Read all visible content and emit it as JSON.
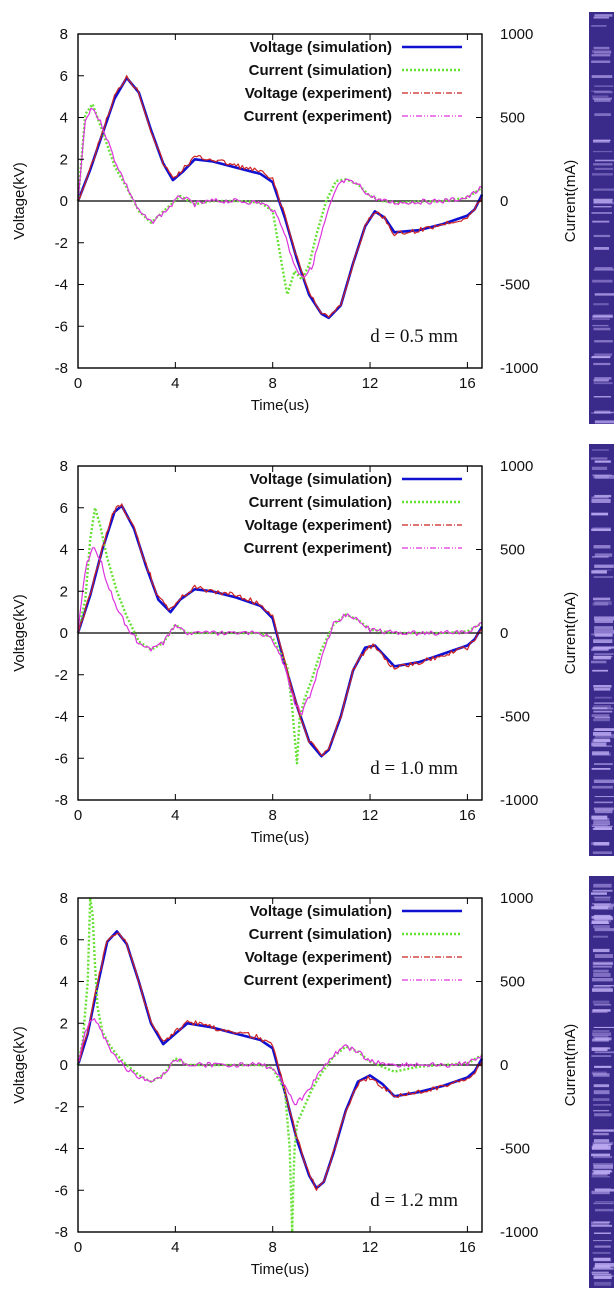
{
  "colors": {
    "voltage_simulation": "#1010d0",
    "current_simulation": "#66e033",
    "voltage_experiment": "#cc2222",
    "current_experiment": "#dd33dd",
    "zero_line": "#000000",
    "strip_base": "#3a2a8a",
    "strip_highlight": "#b9a8f0"
  },
  "strip_image": {
    "description_icon": "discharge-photograph-strip"
  },
  "chart_data": [
    {
      "type": "line",
      "annotation": "d = 0.5 mm",
      "xlabel": "Time(us)",
      "ylabel": "Voltage(kV)",
      "y2label": "Current(mA)",
      "xlim": [
        0,
        16.6
      ],
      "ylim": [
        -8,
        8
      ],
      "y2lim": [
        -1000,
        1000
      ],
      "xticks": [
        "0",
        "4",
        "8",
        "12",
        "16"
      ],
      "yticks": [
        "8",
        "6",
        "4",
        "2",
        "0",
        "-2",
        "-4",
        "-6",
        "-8"
      ],
      "y2ticks": [
        "1000",
        "500",
        "0",
        "-500",
        "-1000"
      ],
      "legend_position": "top-right",
      "legend": [
        "Voltage (simulation)",
        "Current (simulation)",
        "Voltage (experiment)",
        "Current (experiment)"
      ],
      "series": [
        {
          "name": "Voltage (simulation)",
          "axis": "left",
          "x": [
            0,
            0.5,
            1.0,
            1.5,
            2.0,
            2.5,
            3.0,
            3.5,
            3.9,
            4.3,
            4.8,
            5.5,
            6.5,
            7.5,
            8.0,
            8.5,
            9.0,
            9.5,
            10.0,
            10.3,
            10.8,
            11.3,
            11.8,
            12.2,
            12.6,
            13.0,
            14.0,
            15.0,
            16.0,
            16.3,
            16.6
          ],
          "y": [
            0,
            1.5,
            3.2,
            4.9,
            5.9,
            5.2,
            3.4,
            1.8,
            1.0,
            1.4,
            2.0,
            1.9,
            1.6,
            1.3,
            0.9,
            -0.8,
            -2.8,
            -4.5,
            -5.4,
            -5.6,
            -5.0,
            -3.0,
            -1.2,
            -0.5,
            -0.8,
            -1.5,
            -1.4,
            -1.1,
            -0.7,
            -0.4,
            0.3
          ]
        },
        {
          "name": "Current (simulation)",
          "axis": "right",
          "x": [
            0,
            0.3,
            0.6,
            1.0,
            1.5,
            2.0,
            2.5,
            3.0,
            3.6,
            4.2,
            4.8,
            5.5,
            6.5,
            7.5,
            8.0,
            8.4,
            8.6,
            8.9,
            9.2,
            9.5,
            9.8,
            10.2,
            10.6,
            11.0,
            11.5,
            12.0,
            12.5,
            13.0,
            14.0,
            15.0,
            16.0,
            16.6
          ],
          "y": [
            0,
            520,
            580,
            420,
            210,
            80,
            -60,
            -130,
            -50,
            30,
            -20,
            0,
            0,
            -10,
            -60,
            -400,
            -560,
            -420,
            -470,
            -380,
            -200,
            0,
            120,
            130,
            100,
            30,
            0,
            -10,
            -5,
            0,
            20,
            80
          ]
        },
        {
          "name": "Voltage (experiment)",
          "axis": "left",
          "x": [
            0,
            0.5,
            1.0,
            1.5,
            2.0,
            2.5,
            3.0,
            3.5,
            3.9,
            4.3,
            4.8,
            5.5,
            6.5,
            7.5,
            8.0,
            8.5,
            9.0,
            9.5,
            10.0,
            10.3,
            10.8,
            11.3,
            11.8,
            12.2,
            12.6,
            13.0,
            14.0,
            15.0,
            16.0,
            16.3,
            16.6
          ],
          "y": [
            0,
            1.5,
            3.3,
            5.0,
            6.0,
            5.2,
            3.4,
            1.8,
            1.1,
            1.5,
            2.1,
            2.0,
            1.7,
            1.4,
            1.0,
            -0.7,
            -2.7,
            -4.4,
            -5.3,
            -5.6,
            -5.0,
            -3.0,
            -1.2,
            -0.5,
            -0.8,
            -1.6,
            -1.4,
            -1.1,
            -0.8,
            -0.4,
            0.2
          ]
        },
        {
          "name": "Current (experiment)",
          "axis": "right",
          "x": [
            0,
            0.3,
            0.6,
            1.0,
            1.5,
            2.0,
            2.5,
            3.0,
            3.6,
            4.2,
            4.8,
            5.5,
            6.5,
            7.5,
            8.0,
            8.4,
            8.7,
            9.0,
            9.3,
            9.6,
            9.9,
            10.3,
            10.7,
            11.0,
            11.5,
            12.0,
            12.5,
            13.0,
            14.0,
            15.0,
            16.0,
            16.6
          ],
          "y": [
            0,
            480,
            560,
            450,
            250,
            90,
            -60,
            -130,
            -60,
            30,
            -20,
            0,
            0,
            -10,
            -50,
            -150,
            -300,
            -420,
            -450,
            -400,
            -250,
            -50,
            100,
            120,
            100,
            30,
            0,
            -10,
            -5,
            0,
            20,
            80
          ]
        }
      ]
    },
    {
      "type": "line",
      "annotation": "d = 1.0 mm",
      "xlabel": "Time(us)",
      "ylabel": "Voltage(kV)",
      "y2label": "Current(mA)",
      "xlim": [
        0,
        16.6
      ],
      "ylim": [
        -8,
        8
      ],
      "y2lim": [
        -1000,
        1000
      ],
      "xticks": [
        "0",
        "4",
        "8",
        "12",
        "16"
      ],
      "yticks": [
        "8",
        "6",
        "4",
        "2",
        "0",
        "-2",
        "-4",
        "-6",
        "-8"
      ],
      "y2ticks": [
        "1000",
        "500",
        "0",
        "-500",
        "-1000"
      ],
      "legend_position": "top-right",
      "legend": [
        "Voltage (simulation)",
        "Current (simulation)",
        "Voltage (experiment)",
        "Current (experiment)"
      ],
      "series": [
        {
          "name": "Voltage (simulation)",
          "axis": "left",
          "x": [
            0,
            0.5,
            1.0,
            1.5,
            1.8,
            2.3,
            2.8,
            3.3,
            3.8,
            4.2,
            4.8,
            5.5,
            6.5,
            7.5,
            8.0,
            8.5,
            9.0,
            9.5,
            10.0,
            10.3,
            10.8,
            11.3,
            11.8,
            12.2,
            12.6,
            13.0,
            14.0,
            15.0,
            16.0,
            16.3,
            16.6
          ],
          "y": [
            0,
            1.8,
            4.0,
            5.8,
            6.1,
            5.0,
            3.2,
            1.6,
            1.0,
            1.6,
            2.1,
            2.0,
            1.7,
            1.3,
            0.7,
            -1.5,
            -3.5,
            -5.2,
            -5.9,
            -5.6,
            -4.0,
            -1.8,
            -0.7,
            -0.6,
            -1.1,
            -1.6,
            -1.4,
            -1.0,
            -0.6,
            -0.3,
            0.3
          ]
        },
        {
          "name": "Current (simulation)",
          "axis": "right",
          "x": [
            0,
            0.3,
            0.5,
            0.7,
            0.9,
            1.2,
            1.6,
            2.0,
            2.5,
            3.0,
            3.5,
            4.0,
            4.5,
            5.5,
            6.5,
            7.5,
            8.0,
            8.6,
            8.8,
            9.0,
            9.1,
            9.3,
            9.6,
            10.0,
            10.5,
            11.0,
            11.5,
            12.0,
            13.0,
            14.0,
            15.0,
            16.0,
            16.6
          ],
          "y": [
            0,
            200,
            560,
            750,
            650,
            450,
            250,
            100,
            -50,
            -100,
            -60,
            50,
            0,
            0,
            0,
            0,
            -30,
            -200,
            -450,
            -780,
            -520,
            -400,
            -280,
            -100,
            50,
            110,
            80,
            20,
            0,
            0,
            0,
            10,
            60
          ]
        },
        {
          "name": "Voltage (experiment)",
          "axis": "left",
          "x": [
            0,
            0.5,
            1.0,
            1.5,
            1.8,
            2.3,
            2.8,
            3.3,
            3.8,
            4.2,
            4.8,
            5.5,
            6.5,
            7.5,
            8.0,
            8.5,
            9.0,
            9.5,
            10.0,
            10.3,
            10.8,
            11.3,
            11.8,
            12.2,
            12.6,
            13.0,
            14.0,
            15.0,
            16.0,
            16.3,
            16.6
          ],
          "y": [
            0,
            1.8,
            4.1,
            5.9,
            6.1,
            5.0,
            3.3,
            1.7,
            1.1,
            1.7,
            2.2,
            2.0,
            1.8,
            1.4,
            0.8,
            -1.4,
            -3.5,
            -5.2,
            -5.8,
            -5.6,
            -4.0,
            -1.8,
            -0.8,
            -0.6,
            -1.2,
            -1.7,
            -1.4,
            -1.1,
            -0.7,
            -0.3,
            0.2
          ]
        },
        {
          "name": "Current (experiment)",
          "axis": "right",
          "x": [
            0,
            0.3,
            0.6,
            0.9,
            1.2,
            1.6,
            2.0,
            2.5,
            3.0,
            3.5,
            4.0,
            4.5,
            5.5,
            6.5,
            7.5,
            8.0,
            8.5,
            8.9,
            9.2,
            9.6,
            10.0,
            10.5,
            11.0,
            11.5,
            12.0,
            13.0,
            14.0,
            15.0,
            16.0,
            16.6
          ],
          "y": [
            0,
            380,
            520,
            450,
            300,
            150,
            40,
            -60,
            -100,
            -60,
            50,
            0,
            0,
            0,
            0,
            -40,
            -200,
            -420,
            -480,
            -350,
            -150,
            50,
            110,
            80,
            20,
            0,
            0,
            0,
            10,
            60
          ]
        }
      ]
    },
    {
      "type": "line",
      "annotation": "d = 1.2 mm",
      "xlabel": "Time(us)",
      "ylabel": "Voltage(kV)",
      "y2label": "Current(mA)",
      "xlim": [
        0,
        16.6
      ],
      "ylim": [
        -8,
        8
      ],
      "y2lim": [
        -1000,
        1000
      ],
      "xticks": [
        "0",
        "4",
        "8",
        "12",
        "16"
      ],
      "yticks": [
        "8",
        "6",
        "4",
        "2",
        "0",
        "-2",
        "-4",
        "-6",
        "-8"
      ],
      "y2ticks": [
        "1000",
        "500",
        "0",
        "-500",
        "-1000"
      ],
      "legend_position": "top-right",
      "legend": [
        "Voltage (simulation)",
        "Current (simulation)",
        "Voltage (experiment)",
        "Current (experiment)"
      ],
      "series": [
        {
          "name": "Voltage (simulation)",
          "axis": "left",
          "x": [
            0,
            0.4,
            0.8,
            1.2,
            1.6,
            2.0,
            2.5,
            3.0,
            3.5,
            4.0,
            4.5,
            5.5,
            6.5,
            7.5,
            8.0,
            8.5,
            9.0,
            9.5,
            9.8,
            10.1,
            10.5,
            11.0,
            11.5,
            12.0,
            12.5,
            13.0,
            14.0,
            15.0,
            16.0,
            16.3,
            16.6
          ],
          "y": [
            0,
            1.5,
            3.8,
            5.9,
            6.4,
            5.8,
            4.0,
            2.0,
            1.0,
            1.5,
            2.0,
            1.8,
            1.5,
            1.2,
            0.8,
            -1.3,
            -3.6,
            -5.3,
            -5.9,
            -5.6,
            -4.2,
            -2.2,
            -0.8,
            -0.5,
            -0.9,
            -1.5,
            -1.3,
            -1.0,
            -0.6,
            -0.3,
            0.3
          ]
        },
        {
          "name": "Current (simulation)",
          "axis": "right",
          "x": [
            0,
            0.2,
            0.4,
            0.5,
            0.6,
            0.7,
            0.8,
            1.0,
            1.3,
            1.6,
            2.0,
            2.5,
            3.0,
            3.5,
            4.0,
            4.5,
            5.5,
            6.5,
            7.5,
            8.0,
            8.5,
            8.7,
            8.8,
            8.85,
            8.9,
            9.0,
            9.3,
            9.6,
            10.0,
            10.5,
            11.0,
            11.5,
            12.0,
            13.0,
            14.0,
            15.0,
            16.0,
            16.6
          ],
          "y": [
            0,
            150,
            500,
            1000,
            900,
            600,
            350,
            200,
            120,
            60,
            0,
            -60,
            -100,
            -60,
            40,
            0,
            0,
            0,
            0,
            -20,
            -150,
            -500,
            -1000,
            -700,
            -500,
            -350,
            -250,
            -150,
            -50,
            50,
            110,
            80,
            20,
            -40,
            -10,
            0,
            10,
            60
          ]
        },
        {
          "name": "Voltage (experiment)",
          "axis": "left",
          "x": [
            0,
            0.4,
            0.8,
            1.2,
            1.6,
            2.0,
            2.5,
            3.0,
            3.5,
            4.0,
            4.5,
            5.5,
            6.5,
            7.5,
            8.0,
            8.5,
            9.0,
            9.5,
            9.8,
            10.1,
            10.5,
            11.0,
            11.5,
            12.0,
            12.5,
            13.0,
            14.0,
            15.0,
            16.0,
            16.3,
            16.6
          ],
          "y": [
            0,
            1.6,
            3.9,
            6.0,
            6.4,
            5.8,
            4.0,
            2.0,
            1.1,
            1.6,
            2.1,
            1.8,
            1.6,
            1.3,
            0.9,
            -1.2,
            -3.5,
            -5.3,
            -5.9,
            -5.6,
            -4.2,
            -2.2,
            -0.9,
            -0.6,
            -1.0,
            -1.5,
            -1.3,
            -1.0,
            -0.7,
            -0.3,
            0.2
          ]
        },
        {
          "name": "Current (experiment)",
          "axis": "right",
          "x": [
            0,
            0.3,
            0.6,
            0.9,
            1.2,
            1.6,
            2.0,
            2.5,
            3.0,
            3.5,
            4.0,
            4.5,
            5.5,
            6.5,
            7.5,
            8.0,
            8.5,
            8.9,
            9.2,
            9.6,
            10.0,
            10.5,
            11.0,
            11.5,
            12.0,
            13.0,
            14.0,
            15.0,
            16.0,
            16.6
          ],
          "y": [
            0,
            200,
            280,
            220,
            120,
            40,
            -20,
            -70,
            -100,
            -60,
            40,
            0,
            0,
            0,
            0,
            -20,
            -120,
            -230,
            -200,
            -120,
            -30,
            60,
            110,
            80,
            20,
            0,
            0,
            0,
            10,
            60
          ]
        }
      ]
    }
  ]
}
